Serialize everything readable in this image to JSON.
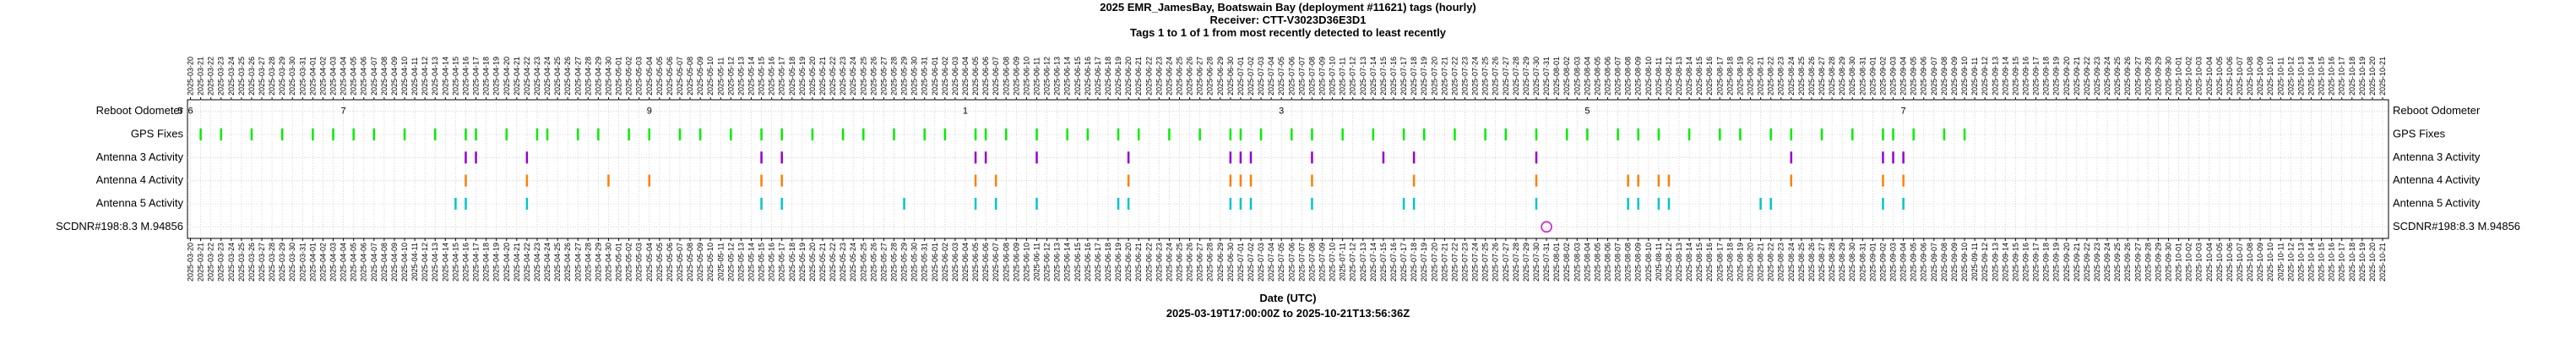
{
  "chart_data": {
    "type": "timeline",
    "title": "2025 EMR_JamesBay, Boatswain Bay (deployment #11621) tags (hourly)",
    "subtitle": "Receiver: CTT-V3023D36E3D1",
    "subtitle2": "Tags 1 to 1 of 1 from most recently detected to least recently",
    "xlabel": "Date (UTC)",
    "xrange_label": "2025-03-19T17:00:00Z to 2025-10-21T13:56:36Z",
    "xlim": [
      "2025-03-19T17:00:00Z",
      "2025-10-21T13:56:36Z"
    ],
    "grid": true,
    "xticks": [
      "2025-03-20",
      "2025-03-21",
      "2025-03-22",
      "2025-03-23",
      "2025-03-24",
      "2025-03-25",
      "2025-03-26",
      "2025-03-27",
      "2025-03-28",
      "2025-03-29",
      "2025-03-30",
      "2025-03-31",
      "2025-04-01",
      "2025-04-02",
      "2025-04-03",
      "2025-04-04",
      "2025-04-05",
      "2025-04-06",
      "2025-04-07",
      "2025-04-08",
      "2025-04-09",
      "2025-04-10",
      "2025-04-11",
      "2025-04-12",
      "2025-04-13",
      "2025-04-14",
      "2025-04-15",
      "2025-04-16",
      "2025-04-17",
      "2025-04-18",
      "2025-04-19",
      "2025-04-20",
      "2025-04-21",
      "2025-04-22",
      "2025-04-23",
      "2025-04-24",
      "2025-04-25",
      "2025-04-26",
      "2025-04-27",
      "2025-04-28",
      "2025-04-29",
      "2025-04-30",
      "2025-05-01",
      "2025-05-02",
      "2025-05-03",
      "2025-05-04",
      "2025-05-05",
      "2025-05-06",
      "2025-05-07",
      "2025-05-08",
      "2025-05-09",
      "2025-05-10",
      "2025-05-11",
      "2025-05-12",
      "2025-05-13",
      "2025-05-14",
      "2025-05-15",
      "2025-05-16",
      "2025-05-17",
      "2025-05-18",
      "2025-05-19",
      "2025-05-20",
      "2025-05-21",
      "2025-05-22",
      "2025-05-23",
      "2025-05-24",
      "2025-05-25",
      "2025-05-26",
      "2025-05-27",
      "2025-05-28",
      "2025-05-29",
      "2025-05-30",
      "2025-05-31",
      "2025-06-01",
      "2025-06-02",
      "2025-06-03",
      "2025-06-04",
      "2025-06-05",
      "2025-06-06",
      "2025-06-07",
      "2025-06-08",
      "2025-06-09",
      "2025-06-10",
      "2025-06-11",
      "2025-06-12",
      "2025-06-13",
      "2025-06-14",
      "2025-06-15",
      "2025-06-16",
      "2025-06-17",
      "2025-06-18",
      "2025-06-19",
      "2025-06-20",
      "2025-06-21",
      "2025-06-22",
      "2025-06-23",
      "2025-06-24",
      "2025-06-25",
      "2025-06-26",
      "2025-06-27",
      "2025-06-28",
      "2025-06-29",
      "2025-06-30",
      "2025-07-01",
      "2025-07-02",
      "2025-07-03",
      "2025-07-04",
      "2025-07-05",
      "2025-07-06",
      "2025-07-07",
      "2025-07-08",
      "2025-07-09",
      "2025-07-10",
      "2025-07-11",
      "2025-07-12",
      "2025-07-13",
      "2025-07-14",
      "2025-07-15",
      "2025-07-16",
      "2025-07-17",
      "2025-07-18",
      "2025-07-19",
      "2025-07-20",
      "2025-07-21",
      "2025-07-22",
      "2025-07-23",
      "2025-07-24",
      "2025-07-25",
      "2025-07-26",
      "2025-07-27",
      "2025-07-28",
      "2025-07-29",
      "2025-07-30",
      "2025-07-31",
      "2025-08-01",
      "2025-08-02",
      "2025-08-03",
      "2025-08-04",
      "2025-08-05",
      "2025-08-06",
      "2025-08-07",
      "2025-08-08",
      "2025-08-09",
      "2025-08-10",
      "2025-08-11",
      "2025-08-12",
      "2025-08-13",
      "2025-08-14",
      "2025-08-15",
      "2025-08-16",
      "2025-08-17",
      "2025-08-18",
      "2025-08-19",
      "2025-08-20",
      "2025-08-21",
      "2025-08-22",
      "2025-08-23",
      "2025-08-24",
      "2025-08-25",
      "2025-08-26",
      "2025-08-27",
      "2025-08-28",
      "2025-08-29",
      "2025-08-30",
      "2025-08-31",
      "2025-09-01",
      "2025-09-02",
      "2025-09-03",
      "2025-09-04",
      "2025-09-05",
      "2025-09-06",
      "2025-09-07",
      "2025-09-08",
      "2025-09-09",
      "2025-09-10",
      "2025-09-11",
      "2025-09-12",
      "2025-09-13",
      "2025-09-14",
      "2025-09-15",
      "2025-09-16",
      "2025-09-17",
      "2025-09-18",
      "2025-09-19",
      "2025-09-20",
      "2025-09-21",
      "2025-09-22",
      "2025-09-23",
      "2025-09-24",
      "2025-09-25",
      "2025-09-26",
      "2025-09-27",
      "2025-09-28",
      "2025-09-29",
      "2025-09-30",
      "2025-10-01",
      "2025-10-02",
      "2025-10-03",
      "2025-10-04",
      "2025-10-05",
      "2025-10-06",
      "2025-10-07",
      "2025-10-08",
      "2025-10-09",
      "2025-10-10",
      "2025-10-11",
      "2025-10-12",
      "2025-10-13",
      "2025-10-14",
      "2025-10-15",
      "2025-10-16",
      "2025-10-17",
      "2025-10-18",
      "2025-10-19",
      "2025-10-20",
      "2025-10-21"
    ],
    "series": [
      {
        "name": "Reboot Odometer",
        "marker": "text",
        "color": "#000000",
        "x": [
          "2025-03-19",
          "2025-03-20",
          "2025-04-04",
          "2025-05-04",
          "2025-06-04",
          "2025-07-05",
          "2025-08-04",
          "2025-09-04"
        ],
        "values": [
          5,
          6,
          7,
          9,
          1,
          3,
          5,
          7
        ]
      },
      {
        "name": "GPS Fixes",
        "marker": "tick",
        "color": "#00ee00",
        "x": [
          "2025-03-21",
          "2025-03-23",
          "2025-03-26",
          "2025-03-29",
          "2025-04-01",
          "2025-04-03",
          "2025-04-05",
          "2025-04-07",
          "2025-04-10",
          "2025-04-13",
          "2025-04-16",
          "2025-04-17",
          "2025-04-20",
          "2025-04-23",
          "2025-04-24",
          "2025-04-27",
          "2025-04-29",
          "2025-05-02",
          "2025-05-04",
          "2025-05-07",
          "2025-05-09",
          "2025-05-12",
          "2025-05-15",
          "2025-05-17",
          "2025-05-20",
          "2025-05-23",
          "2025-05-25",
          "2025-05-28",
          "2025-05-31",
          "2025-06-02",
          "2025-06-05",
          "2025-06-06",
          "2025-06-08",
          "2025-06-11",
          "2025-06-14",
          "2025-06-16",
          "2025-06-19",
          "2025-06-21",
          "2025-06-24",
          "2025-06-27",
          "2025-06-30",
          "2025-07-01",
          "2025-07-03",
          "2025-07-06",
          "2025-07-08",
          "2025-07-11",
          "2025-07-14",
          "2025-07-17",
          "2025-07-19",
          "2025-07-22",
          "2025-07-25",
          "2025-07-27",
          "2025-07-30",
          "2025-08-02",
          "2025-08-04",
          "2025-08-07",
          "2025-08-09",
          "2025-08-11",
          "2025-08-14",
          "2025-08-17",
          "2025-08-19",
          "2025-08-22",
          "2025-08-24",
          "2025-08-27",
          "2025-08-30",
          "2025-09-02",
          "2025-09-03",
          "2025-09-05",
          "2025-09-08",
          "2025-09-10"
        ]
      },
      {
        "name": "Antenna 3 Activity",
        "marker": "tick",
        "color": "#9400d3",
        "x": [
          "2025-04-16",
          "2025-04-17",
          "2025-04-22",
          "2025-05-15",
          "2025-05-17",
          "2025-06-05",
          "2025-06-06",
          "2025-06-11",
          "2025-06-20",
          "2025-06-30",
          "2025-07-01",
          "2025-07-02",
          "2025-07-08",
          "2025-07-15",
          "2025-07-18",
          "2025-07-30",
          "2025-08-24",
          "2025-09-02",
          "2025-09-03",
          "2025-09-04"
        ]
      },
      {
        "name": "Antenna 4 Activity",
        "marker": "tick",
        "color": "#ff7f00",
        "x": [
          "2025-04-16",
          "2025-04-22",
          "2025-04-30",
          "2025-05-04",
          "2025-05-15",
          "2025-05-17",
          "2025-06-05",
          "2025-06-07",
          "2025-06-20",
          "2025-06-30",
          "2025-07-01",
          "2025-07-02",
          "2025-07-08",
          "2025-07-18",
          "2025-07-30",
          "2025-08-08",
          "2025-08-09",
          "2025-08-11",
          "2025-08-12",
          "2025-08-24",
          "2025-09-02",
          "2025-09-04"
        ]
      },
      {
        "name": "Antenna 5 Activity",
        "marker": "tick",
        "color": "#00c5cd",
        "x": [
          "2025-04-15",
          "2025-04-16",
          "2025-04-22",
          "2025-05-15",
          "2025-05-17",
          "2025-05-29",
          "2025-06-05",
          "2025-06-07",
          "2025-06-11",
          "2025-06-19",
          "2025-06-20",
          "2025-06-30",
          "2025-07-01",
          "2025-07-02",
          "2025-07-08",
          "2025-07-17",
          "2025-07-18",
          "2025-07-30",
          "2025-08-08",
          "2025-08-09",
          "2025-08-11",
          "2025-08-12",
          "2025-08-21",
          "2025-08-22",
          "2025-09-02",
          "2025-09-04"
        ]
      },
      {
        "name": "SCDNR#198:8.3 M.94856",
        "marker": "circle",
        "color": "#cc33cc",
        "x": [
          "2025-07-31"
        ]
      }
    ]
  }
}
